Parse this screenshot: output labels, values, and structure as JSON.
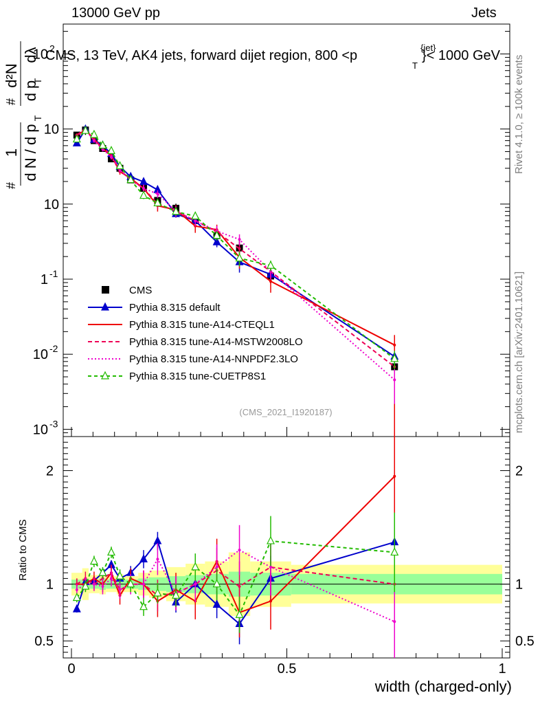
{
  "header": {
    "energy_label": "13000 GeV pp",
    "category_label": "Jets"
  },
  "side_labels": {
    "rivet": "Rivet 4.1.0, ≥ 100k events",
    "source": "mcplots.cern.ch [arXiv:2401.10621]"
  },
  "chart_data": {
    "type": "line",
    "title": "CMS, 13 TeV, AK4 jets, forward dijet region, 800 < p_T^{jet} < 1000 GeV",
    "title_text": "CMS, 13 TeV, AK4 jets, forward dijet region, 800 <p",
    "title_sup": "{jet}",
    "title_sub": "T",
    "title_end": "}< 1000 GeV",
    "analysis_id": "(CMS_2021_I1920187)",
    "xlabel": "width (charged-only)",
    "ylabel_parts": {
      "prefix": "1",
      "mid": "d N / d p",
      "num": "d²N",
      "den": "d p",
      "lambda": "dλ",
      "sub": "T",
      "hash": "#"
    },
    "ylabel": "1/(dN/dp_T) d²N/(dp_T dλ)",
    "xlim": [
      0,
      1
    ],
    "ylim": [
      0.0008,
      250
    ],
    "ratio_label": "Ratio to CMS",
    "ratio_ylim": [
      0.35,
      2.3
    ],
    "x_ticks": [
      0,
      0.5,
      1
    ],
    "x_tick_labels": [
      "0",
      "0.5",
      "1"
    ],
    "y_ticks": [
      0.001,
      0.01,
      0.1,
      1,
      10,
      100
    ],
    "y_tick_labels": [
      "10",
      "10",
      "1",
      "10",
      "10"
    ],
    "y_tick_exponents": [
      "-3",
      "-2",
      "-1",
      "",
      "",
      "2"
    ],
    "ratio_ticks": [
      0.5,
      1,
      2
    ],
    "ratio_tick_labels": [
      "0.5",
      "1",
      "2"
    ],
    "x": [
      0.0125,
      0.0325,
      0.0525,
      0.0725,
      0.0925,
      0.1125,
      0.1375,
      0.1675,
      0.2,
      0.2425,
      0.2875,
      0.3375,
      0.39,
      0.4625,
      0.75
    ],
    "bin_edges": [
      0.0,
      0.025,
      0.04,
      0.065,
      0.08,
      0.105,
      0.12,
      0.155,
      0.18,
      0.22,
      0.265,
      0.31,
      0.365,
      0.415,
      0.51,
      1.0
    ],
    "data": {
      "name": "CMS",
      "values": [
        8.3,
        9.7,
        7.0,
        5.5,
        4.0,
        3.0,
        2.1,
        1.62,
        1.12,
        0.88,
        0.6,
        0.38,
        0.26,
        0.11,
        0.0068
      ],
      "band_inner": [
        0.04,
        0.05,
        0.04,
        0.05,
        0.04,
        0.05,
        0.04,
        0.05,
        0.06,
        0.07,
        0.08,
        0.09,
        0.11,
        0.1,
        0.09
      ],
      "band_outer": [
        0.1,
        0.14,
        0.08,
        0.09,
        0.07,
        0.09,
        0.07,
        0.1,
        0.12,
        0.15,
        0.18,
        0.2,
        0.28,
        0.2,
        0.17
      ]
    },
    "series": [
      {
        "name": "Pythia 8.315 default",
        "color": "#0000cc",
        "style": "solid-triangle",
        "ratio": [
          0.78,
          1.02,
          1.03,
          1.1,
          1.17,
          1.05,
          1.1,
          1.22,
          1.38,
          0.84,
          1.0,
          0.82,
          0.65,
          1.05,
          1.37
        ],
        "ratio_err": [
          0.03,
          0.04,
          0.04,
          0.04,
          0.04,
          0.05,
          0.06,
          0.08,
          0.08,
          0.09,
          0.1,
          0.12,
          0.18,
          0.2,
          0.45
        ]
      },
      {
        "name": "Pythia 8.315 tune-A14-CTEQL1",
        "color": "#ee0000",
        "style": "solid",
        "ratio": [
          1.0,
          1.0,
          1.05,
          1.0,
          1.1,
          0.9,
          1.05,
          1.0,
          0.85,
          0.95,
          0.85,
          1.2,
          0.75,
          0.85,
          1.95
        ],
        "ratio_err": [
          0.05,
          0.06,
          0.06,
          0.07,
          0.07,
          0.08,
          0.09,
          0.12,
          0.14,
          0.15,
          0.16,
          0.2,
          0.22,
          0.25,
          0.7
        ]
      },
      {
        "name": "Pythia 8.315 tune-A14-MSTW2008LO",
        "color": "#ee0055",
        "style": "dashed",
        "ratio": [
          1.0,
          1.05,
          1.0,
          1.05,
          1.1,
          0.95,
          1.0,
          1.0,
          0.9,
          0.92,
          1.0,
          1.12,
          0.98,
          1.15,
          1.0
        ],
        "ratio_err": [
          0.05,
          0.06,
          0.06,
          0.07,
          0.07,
          0.08,
          0.09,
          0.12,
          0.14,
          0.15,
          0.16,
          0.2,
          0.22,
          0.25,
          0.5
        ]
      },
      {
        "name": "Pythia 8.315 tune-A14-NNPDF2.3LO",
        "color": "#ee00cc",
        "style": "dotted",
        "ratio": [
          0.95,
          1.0,
          1.0,
          0.98,
          1.05,
          0.95,
          1.0,
          1.0,
          1.22,
          0.92,
          1.0,
          1.15,
          1.3,
          1.15,
          0.67
        ],
        "ratio_err": [
          0.05,
          0.06,
          0.06,
          0.07,
          0.07,
          0.08,
          0.09,
          0.12,
          0.14,
          0.15,
          0.16,
          0.2,
          0.22,
          0.25,
          0.35
        ]
      },
      {
        "name": "Pythia 8.315 tune-CUETP8S1",
        "color": "#22bb00",
        "style": "dashed-open-triangle",
        "ratio": [
          0.88,
          0.98,
          1.2,
          1.1,
          1.28,
          1.07,
          1.0,
          0.8,
          0.92,
          0.9,
          1.15,
          1.0,
          0.73,
          1.38,
          1.28
        ],
        "ratio_err": [
          0.04,
          0.05,
          0.05,
          0.05,
          0.05,
          0.06,
          0.07,
          0.08,
          0.09,
          0.1,
          0.12,
          0.14,
          0.16,
          0.22,
          0.35
        ]
      }
    ],
    "legend_position": "middle-left"
  }
}
